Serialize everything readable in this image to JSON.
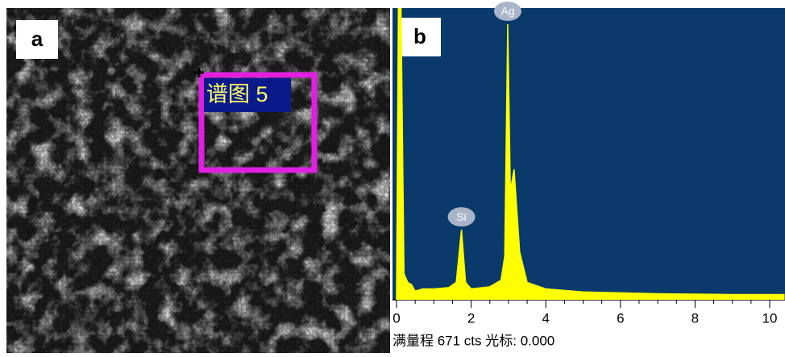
{
  "panel_a": {
    "label": "a",
    "region_label": "谱图 5"
  },
  "chart_data": {
    "type": "line",
    "panel_label": "b",
    "color": "#ffff00",
    "background": "#0a3a6b",
    "x": [
      0.0,
      0.05,
      0.12,
      0.2,
      0.3,
      0.4,
      0.5,
      0.7,
      1.0,
      1.4,
      1.6,
      1.74,
      1.85,
      2.0,
      2.5,
      2.8,
      2.9,
      2.98,
      3.05,
      3.15,
      3.3,
      3.5,
      4.0,
      5.0,
      6.0,
      7.0,
      8.0,
      9.0,
      10.0,
      10.4
    ],
    "series": [
      {
        "values": [
          0,
          671,
          671,
          60,
          40,
          35,
          20,
          25,
          25,
          28,
          40,
          161,
          40,
          25,
          30,
          45,
          100,
          634,
          250,
          300,
          110,
          40,
          25,
          18,
          16,
          14,
          13,
          12,
          12,
          12
        ]
      }
    ],
    "xlim": [
      0,
      10.4
    ],
    "ylim": [
      0,
      671
    ],
    "xticks": [
      0,
      2,
      4,
      6,
      8,
      10
    ],
    "xticks_minor": [
      0.5,
      1,
      1.5,
      2.5,
      3,
      3.5,
      4.5,
      5,
      5.5,
      6.5,
      7,
      7.5,
      8.5,
      9,
      9.5
    ],
    "peaks": [
      {
        "label": "Ag",
        "x": 2.98,
        "value": 634
      },
      {
        "label": "Si",
        "x": 1.74,
        "value": 161
      }
    ],
    "footer": "满量程 671 cts 光标: 0.000"
  }
}
